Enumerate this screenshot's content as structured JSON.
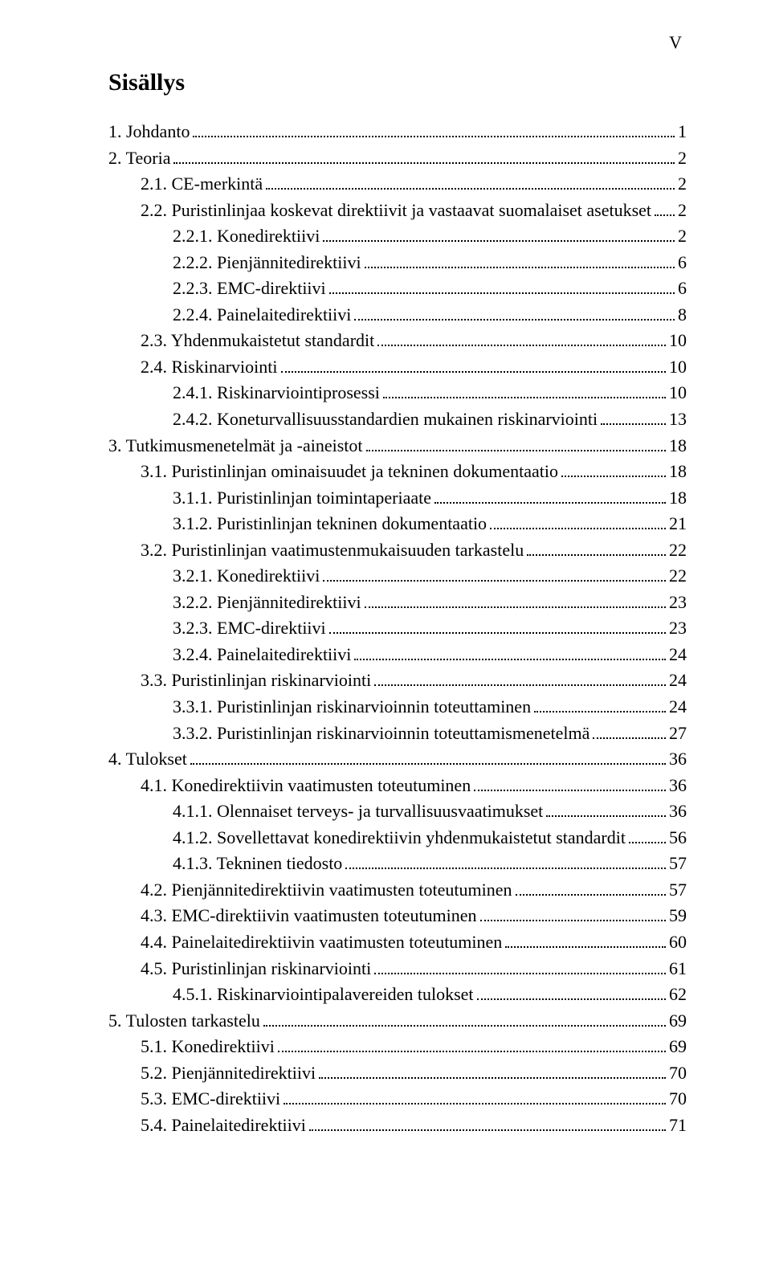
{
  "page_marker": "V",
  "title": "Sisällys",
  "font_family": "Times New Roman",
  "text_color": "#000000",
  "background_color": "#ffffff",
  "title_fontsize": 30,
  "body_fontsize": 22,
  "toc": [
    {
      "level": 0,
      "label": "1. Johdanto",
      "page": "1"
    },
    {
      "level": 0,
      "label": "2. Teoria",
      "page": "2"
    },
    {
      "level": 1,
      "label": "2.1. CE-merkintä",
      "page": "2"
    },
    {
      "level": 1,
      "label": "2.2. Puristinlinjaa koskevat direktiivit ja vastaavat suomalaiset asetukset",
      "page": "2"
    },
    {
      "level": 2,
      "label": "2.2.1. Konedirektiivi",
      "page": "2"
    },
    {
      "level": 2,
      "label": "2.2.2. Pienjännitedirektiivi",
      "page": "6"
    },
    {
      "level": 2,
      "label": "2.2.3. EMC-direktiivi",
      "page": "6"
    },
    {
      "level": 2,
      "label": "2.2.4. Painelaitedirektiivi",
      "page": "8"
    },
    {
      "level": 1,
      "label": "2.3. Yhdenmukaistetut standardit",
      "page": "10"
    },
    {
      "level": 1,
      "label": "2.4. Riskinarviointi",
      "page": "10"
    },
    {
      "level": 2,
      "label": "2.4.1. Riskinarviointiprosessi",
      "page": "10"
    },
    {
      "level": 2,
      "label": "2.4.2. Koneturvallisuusstandardien mukainen riskinarviointi",
      "page": "13"
    },
    {
      "level": 0,
      "label": "3. Tutkimusmenetelmät ja -aineistot",
      "page": "18"
    },
    {
      "level": 1,
      "label": "3.1. Puristinlinjan ominaisuudet ja tekninen dokumentaatio",
      "page": "18"
    },
    {
      "level": 2,
      "label": "3.1.1. Puristinlinjan toimintaperiaate",
      "page": "18"
    },
    {
      "level": 2,
      "label": "3.1.2. Puristinlinjan tekninen dokumentaatio",
      "page": "21"
    },
    {
      "level": 1,
      "label": "3.2. Puristinlinjan vaatimustenmukaisuuden tarkastelu",
      "page": "22"
    },
    {
      "level": 2,
      "label": "3.2.1. Konedirektiivi",
      "page": "22"
    },
    {
      "level": 2,
      "label": "3.2.2. Pienjännitedirektiivi",
      "page": "23"
    },
    {
      "level": 2,
      "label": "3.2.3. EMC-direktiivi",
      "page": "23"
    },
    {
      "level": 2,
      "label": "3.2.4. Painelaitedirektiivi",
      "page": "24"
    },
    {
      "level": 1,
      "label": "3.3. Puristinlinjan riskinarviointi",
      "page": "24"
    },
    {
      "level": 2,
      "label": "3.3.1. Puristinlinjan riskinarvioinnin toteuttaminen",
      "page": "24"
    },
    {
      "level": 2,
      "label": "3.3.2. Puristinlinjan riskinarvioinnin toteuttamismenetelmä",
      "page": "27"
    },
    {
      "level": 0,
      "label": "4. Tulokset",
      "page": "36"
    },
    {
      "level": 1,
      "label": "4.1. Konedirektiivin vaatimusten toteutuminen",
      "page": "36"
    },
    {
      "level": 2,
      "label": "4.1.1. Olennaiset terveys- ja turvallisuusvaatimukset",
      "page": "36"
    },
    {
      "level": 2,
      "label": "4.1.2. Sovellettavat konedirektiivin yhdenmukaistetut standardit",
      "page": "56"
    },
    {
      "level": 2,
      "label": "4.1.3. Tekninen tiedosto",
      "page": "57"
    },
    {
      "level": 1,
      "label": "4.2. Pienjännitedirektiivin vaatimusten toteutuminen",
      "page": "57"
    },
    {
      "level": 1,
      "label": "4.3. EMC-direktiivin vaatimusten toteutuminen",
      "page": "59"
    },
    {
      "level": 1,
      "label": "4.4. Painelaitedirektiivin vaatimusten toteutuminen",
      "page": "60"
    },
    {
      "level": 1,
      "label": "4.5. Puristinlinjan riskinarviointi",
      "page": "61"
    },
    {
      "level": 2,
      "label": "4.5.1. Riskinarviointipalavereiden tulokset",
      "page": "62"
    },
    {
      "level": 0,
      "label": "5. Tulosten tarkastelu",
      "page": "69"
    },
    {
      "level": 1,
      "label": "5.1. Konedirektiivi",
      "page": "69"
    },
    {
      "level": 1,
      "label": "5.2. Pienjännitedirektiivi",
      "page": "70"
    },
    {
      "level": 1,
      "label": "5.3. EMC-direktiivi",
      "page": "70"
    },
    {
      "level": 1,
      "label": "5.4. Painelaitedirektiivi",
      "page": "71"
    }
  ]
}
